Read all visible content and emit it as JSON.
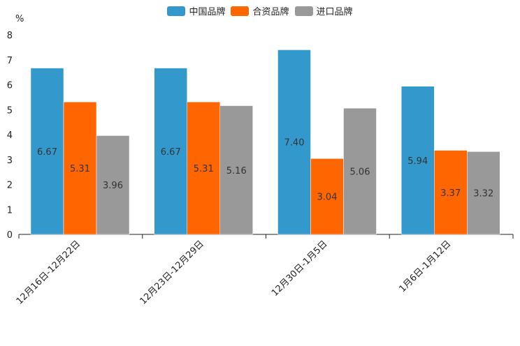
{
  "chart_data": {
    "type": "bar",
    "title": "",
    "xlabel": "",
    "ylabel": "%",
    "ylim": [
      0,
      8
    ],
    "yticks": [
      0,
      1,
      2,
      3,
      4,
      5,
      6,
      7,
      8
    ],
    "categories": [
      "12月16日-12月22日",
      "12月23日-12月29日",
      "12月30日-1月5日",
      "1月6日-1月12日"
    ],
    "series": [
      {
        "name": "中国品牌",
        "color": "#3399cc",
        "values": [
          6.67,
          6.67,
          7.4,
          5.94
        ]
      },
      {
        "name": "合资品牌",
        "color": "#ff6600",
        "values": [
          5.31,
          5.31,
          3.04,
          3.37
        ]
      },
      {
        "name": "进口品牌",
        "color": "#999999",
        "values": [
          3.96,
          5.16,
          5.06,
          3.32
        ]
      }
    ],
    "legend_position": "top-center"
  }
}
